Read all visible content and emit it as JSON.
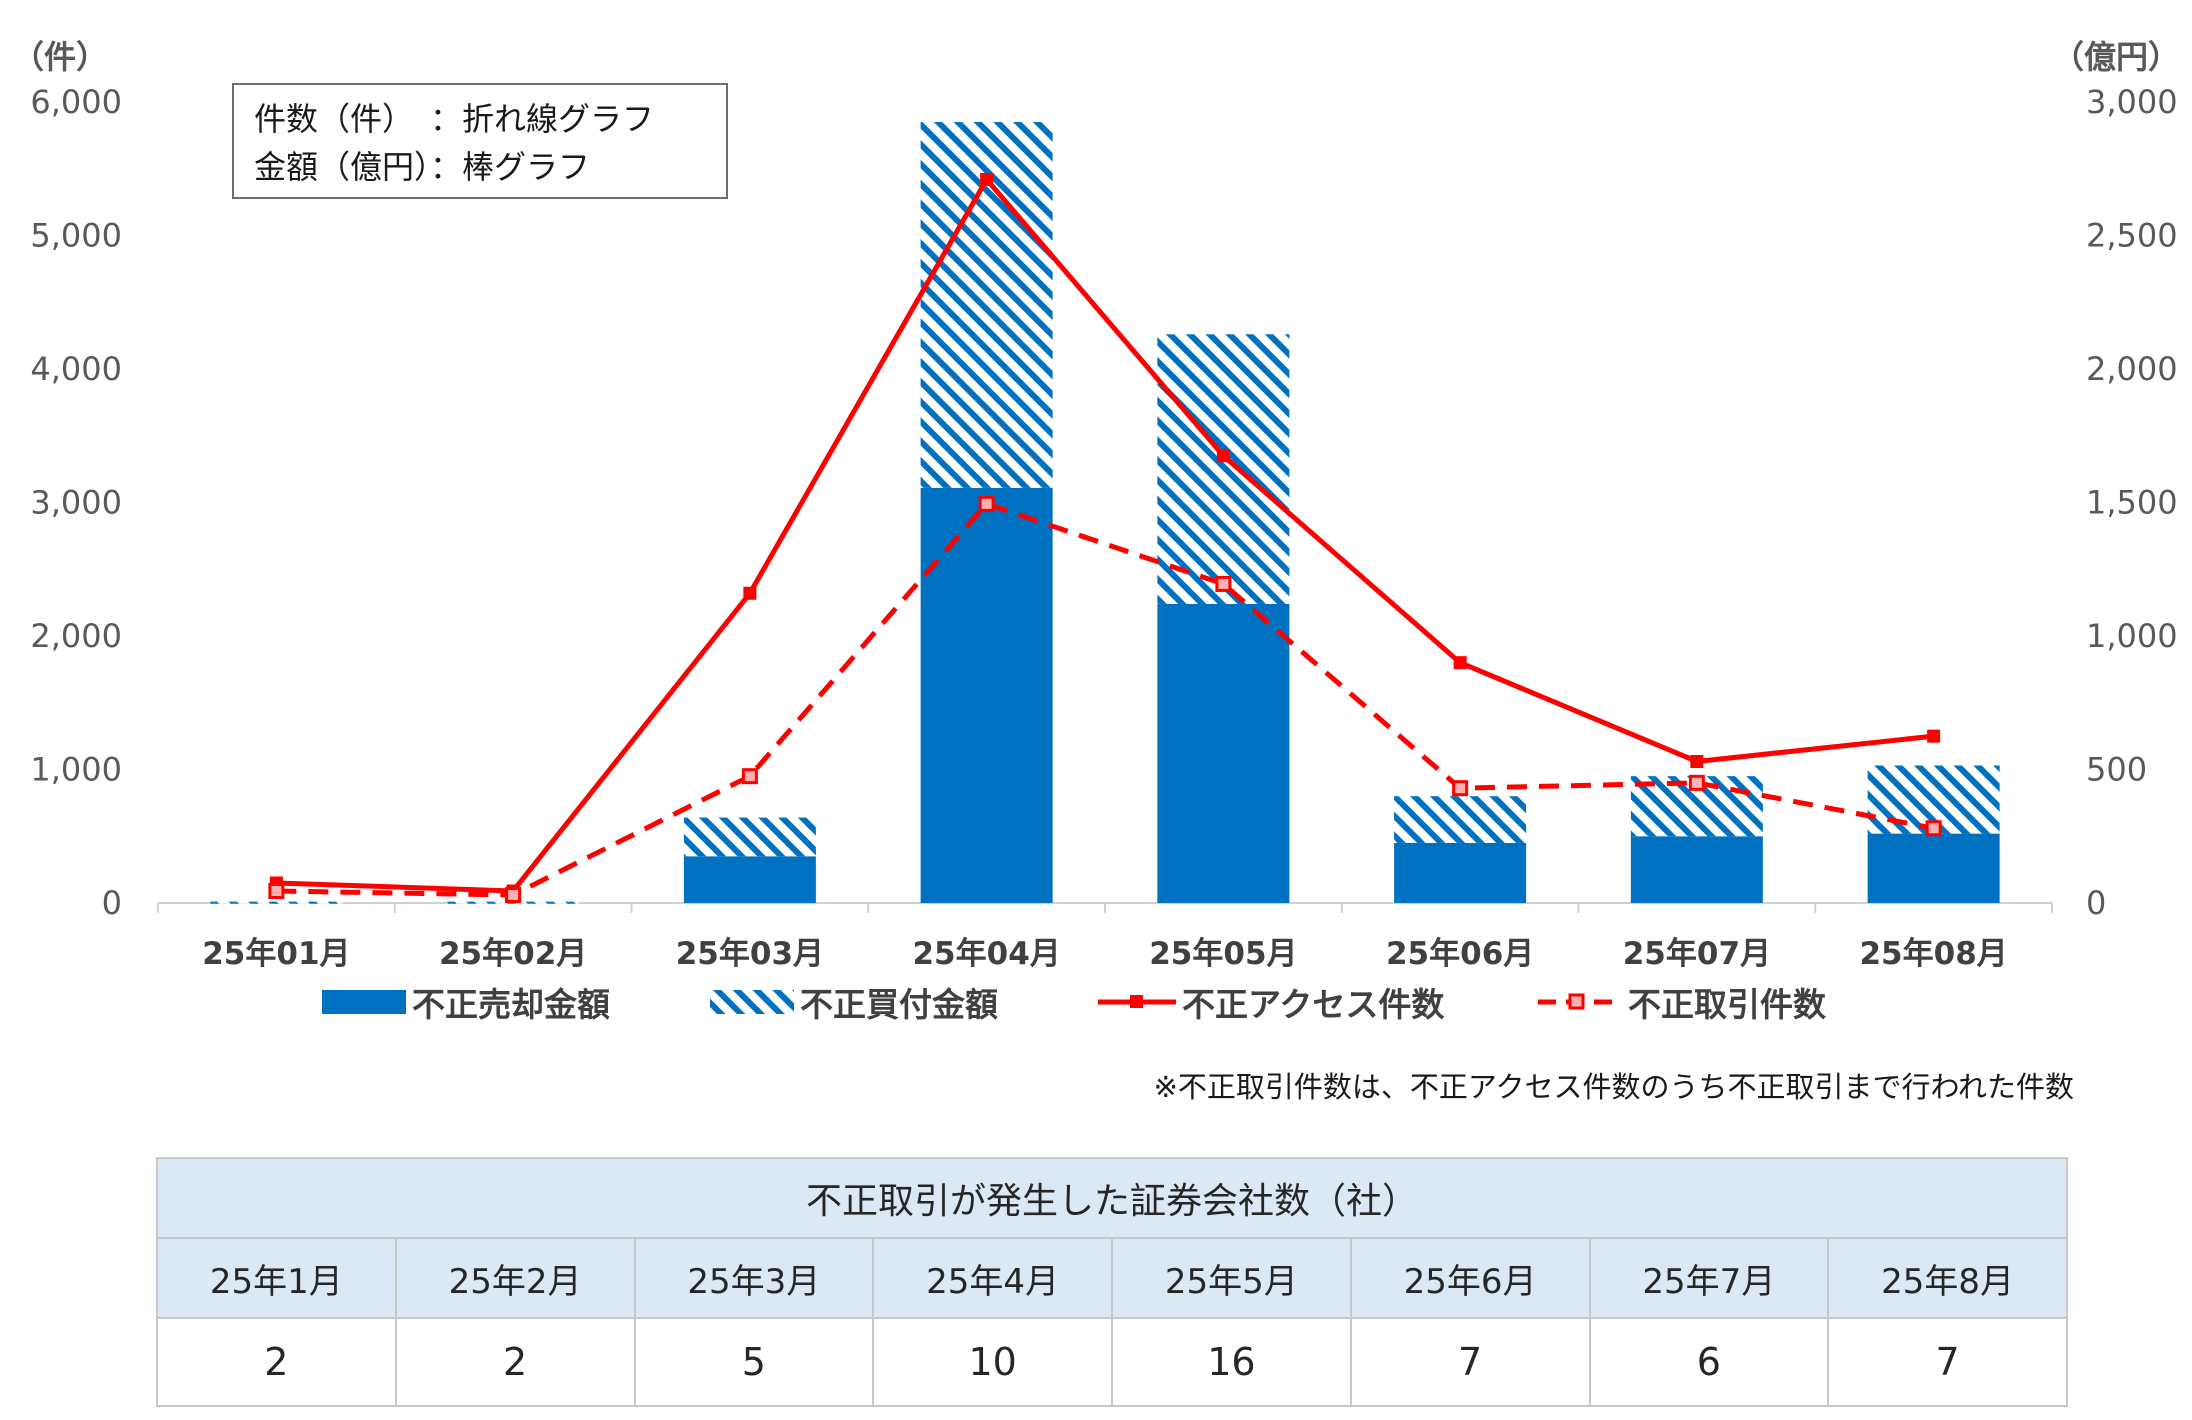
{
  "chart_data": {
    "type": "bar",
    "stacked": true,
    "combo": "bar + line (dual axis)",
    "categories": [
      "25年01月",
      "25年02月",
      "25年03月",
      "25年04月",
      "25年05月",
      "25年06月",
      "25年07月",
      "25年08月"
    ],
    "bar_series": [
      {
        "name": "不正売却金額",
        "color": "#0070c0",
        "pattern": "solid",
        "axis": "right",
        "values": [
          0,
          0,
          175,
          1555,
          1120,
          225,
          250,
          260
        ]
      },
      {
        "name": "不正買付金額",
        "color": "#0070c0",
        "pattern": "diagonal-hatch",
        "axis": "right",
        "values": [
          5,
          5,
          145,
          1370,
          1010,
          175,
          225,
          255
        ]
      }
    ],
    "line_series": [
      {
        "name": "不正アクセス件数",
        "color": "#ff0000",
        "style": "solid",
        "axis": "left",
        "values": [
          150,
          90,
          2320,
          5420,
          3350,
          1800,
          1060,
          1250
        ]
      },
      {
        "name": "不正取引件数",
        "color": "#ff0000",
        "style": "dashed",
        "axis": "left",
        "values": [
          90,
          60,
          950,
          2990,
          2390,
          860,
          900,
          560
        ]
      }
    ],
    "left_axis": {
      "unit_label": "（件）",
      "range": [
        0,
        6000
      ],
      "ticks": [
        "0",
        "1,000",
        "2,000",
        "3,000",
        "4,000",
        "5,000",
        "6,000"
      ]
    },
    "right_axis": {
      "unit_label": "（億円）",
      "range": [
        0,
        3000
      ],
      "ticks": [
        "0",
        "500",
        "1,000",
        "1,500",
        "2,000",
        "2,500",
        "3,000"
      ]
    },
    "grid": false,
    "legend_position": "bottom",
    "annotation_box": [
      "件数（件）　：折れ線グラフ",
      "金額（億円）：棒グラフ"
    ]
  },
  "note": "※不正取引件数は、不正アクセス件数のうち不正取引まで行われた件数",
  "company_table": {
    "title": "不正取引が発生した証券会社数（社）",
    "months": [
      "25年1月",
      "25年2月",
      "25年3月",
      "25年4月",
      "25年5月",
      "25年6月",
      "25年7月",
      "25年8月"
    ],
    "counts": [
      "2",
      "2",
      "5",
      "10",
      "16",
      "7",
      "6",
      "7"
    ]
  }
}
